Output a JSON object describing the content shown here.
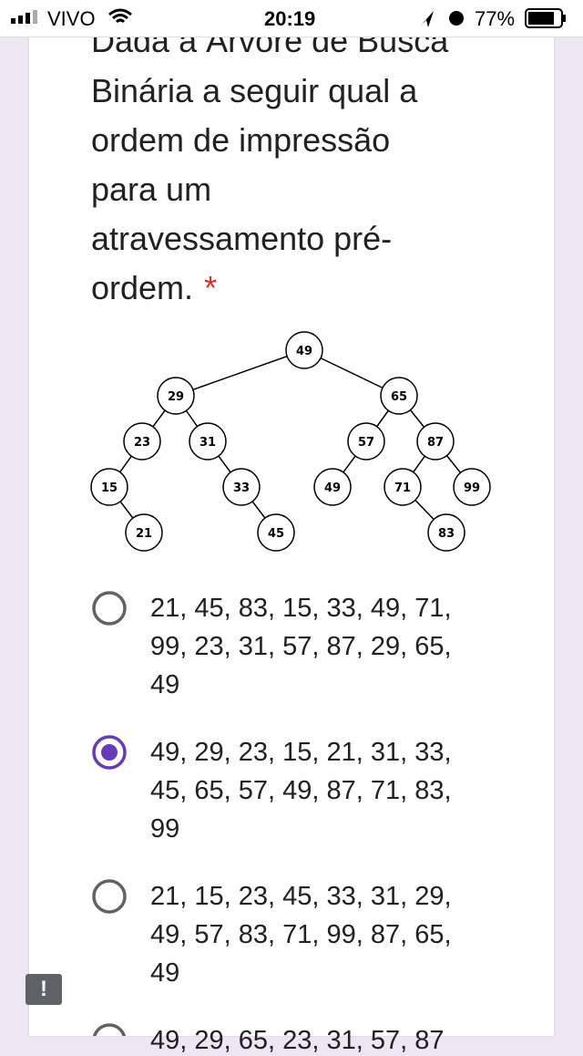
{
  "status_bar": {
    "carrier": "VIVO",
    "time": "20:19",
    "battery": "77%"
  },
  "question": {
    "lines": [
      "Dada a Árvore de Busca",
      "Binária a seguir qual a",
      "ordem de impressão",
      "para um",
      "atravessamento pré-",
      "ordem."
    ],
    "required_mark": "*"
  },
  "tree": {
    "nodes": [
      "49",
      "29",
      "65",
      "23",
      "31",
      "57",
      "87",
      "15",
      "33",
      "49",
      "71",
      "99",
      "21",
      "45",
      "83"
    ]
  },
  "options": [
    {
      "lines": [
        "21, 45, 83, 15, 33, 49, 71,",
        "99, 23, 31, 57, 87, 29, 65,",
        "49"
      ],
      "selected": false
    },
    {
      "lines": [
        "49, 29, 23, 15, 21, 31, 33,",
        "45, 65, 57, 49, 87, 71, 83,",
        "99"
      ],
      "selected": true
    },
    {
      "lines": [
        "21, 15, 23, 45, 33, 31, 29,",
        "49, 57, 83, 71, 99, 87, 65,",
        "49"
      ],
      "selected": false
    },
    {
      "lines": [
        "49, 29, 65, 23, 31, 57, 87"
      ],
      "selected": false
    }
  ]
}
